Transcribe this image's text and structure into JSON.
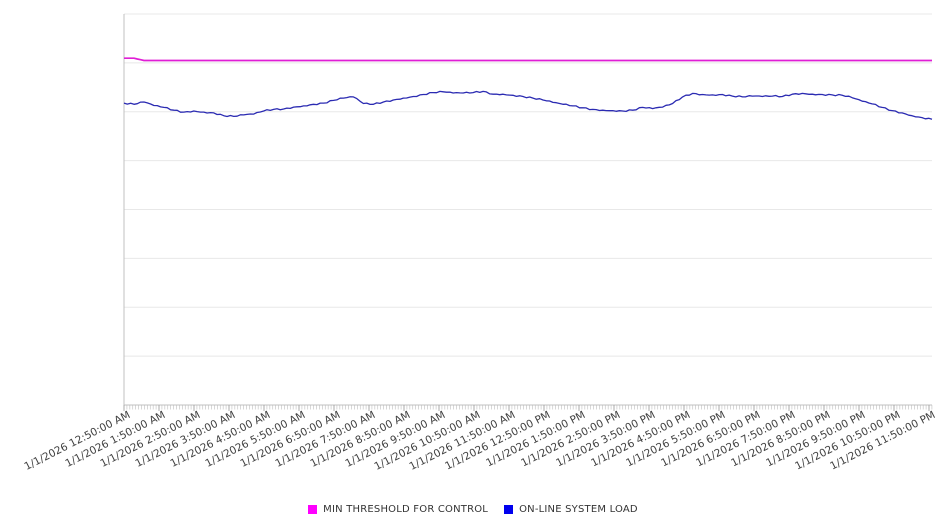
{
  "chart": {
    "title": "",
    "legend": [
      {
        "label": "MIN THRESHOLD FOR CONTROL",
        "swatch_color": "#ff00ff"
      },
      {
        "label": "ON-LINE SYSTEM LOAD",
        "swatch_color": "#0000ee"
      }
    ]
  },
  "chart_data": {
    "type": "line",
    "title": "",
    "xlabel": "",
    "ylabel": "",
    "ylim": [
      0,
      100
    ],
    "grid": "horizontal",
    "gridline_values": [
      100,
      87.5,
      75,
      62.5,
      50,
      37.5,
      25,
      12.5
    ],
    "y_tick_labels_visible": false,
    "legend_position": "bottom-center",
    "x_start": "1/1/2026 12:50:00 AM",
    "x_end": "1/1/2026 11:55:00 PM",
    "x_minor_tick_minutes": 5,
    "x_tick_labels": [
      "1/1/2026 12:50:00 AM",
      "1/1/2026 1:50:00 AM",
      "1/1/2026 2:50:00 AM",
      "1/1/2026 3:50:00 AM",
      "1/1/2026 4:50:00 AM",
      "1/1/2026 5:50:00 AM",
      "1/1/2026 6:50:00 AM",
      "1/1/2026 7:50:00 AM",
      "1/1/2026 8:50:00 AM",
      "1/1/2026 9:50:00 AM",
      "1/1/2026 10:50:00 AM",
      "1/1/2026 11:50:00 AM",
      "1/1/2026 12:50:00 PM",
      "1/1/2026 1:50:00 PM",
      "1/1/2026 2:50:00 PM",
      "1/1/2026 3:50:00 PM",
      "1/1/2026 4:50:00 PM",
      "1/1/2026 5:50:00 PM",
      "1/1/2026 6:50:00 PM",
      "1/1/2026 7:50:00 PM",
      "1/1/2026 8:50:00 PM",
      "1/1/2026 9:50:00 PM",
      "1/1/2026 10:50:00 PM",
      "1/1/2026 11:50:00 PM"
    ],
    "series": [
      {
        "name": "MIN THRESHOLD FOR CONTROL",
        "line_color": "#e01fd5",
        "swatch_color": "#ff00ff",
        "line_width": 1.7,
        "values": [
          88.7,
          88.7,
          88.1,
          88.1,
          88.1,
          88.1,
          88.1,
          88.1,
          88.1,
          88.1,
          88.1,
          88.1,
          88.1,
          88.1,
          88.1,
          88.1,
          88.1,
          88.1,
          88.1,
          88.1,
          88.1,
          88.1,
          88.1,
          88.1,
          88.1,
          88.1,
          88.1,
          88.1,
          88.1,
          88.1,
          88.1,
          88.1,
          88.1,
          88.1,
          88.1,
          88.1,
          88.1,
          88.1,
          88.1,
          88.1,
          88.1,
          88.1,
          88.1,
          88.1,
          88.1,
          88.1,
          88.1,
          88.1,
          88.1,
          88.1,
          88.1,
          88.1,
          88.1,
          88.1,
          88.1,
          88.1,
          88.1,
          88.1,
          88.1,
          88.1,
          88.1,
          88.1,
          88.1,
          88.1,
          88.1,
          88.1,
          88.1,
          88.1,
          88.1,
          88.1,
          88.1,
          88.1,
          88.1,
          88.1,
          88.1,
          88.1,
          88.1,
          88.1,
          88.1,
          88.1,
          88.1,
          88.1
        ]
      },
      {
        "name": "ON-LINE SYSTEM LOAD",
        "line_color": "#2b2bb2",
        "swatch_color": "#0000ee",
        "line_width": 1.3,
        "values": [
          77.2,
          76.9,
          77.5,
          76.6,
          76.1,
          75.4,
          74.9,
          75.2,
          74.9,
          74.7,
          74.0,
          73.8,
          74.2,
          74.4,
          75.2,
          75.6,
          75.7,
          76.2,
          76.5,
          76.9,
          77.2,
          77.9,
          78.5,
          78.8,
          77.1,
          76.9,
          77.5,
          78.0,
          78.5,
          78.9,
          79.4,
          79.9,
          80.1,
          79.8,
          79.8,
          79.9,
          80.2,
          79.5,
          79.5,
          79.2,
          78.9,
          78.5,
          78.0,
          77.4,
          76.9,
          76.5,
          76.0,
          75.6,
          75.4,
          75.3,
          75.2,
          75.4,
          76.1,
          75.8,
          76.2,
          77.1,
          78.8,
          79.7,
          79.4,
          79.3,
          79.4,
          79.0,
          78.8,
          79.0,
          78.9,
          79.0,
          78.9,
          79.5,
          79.7,
          79.5,
          79.4,
          79.3,
          79.2,
          78.6,
          77.7,
          77.0,
          76.1,
          75.3,
          74.7,
          74.0,
          73.5,
          73.1
        ]
      }
    ]
  }
}
